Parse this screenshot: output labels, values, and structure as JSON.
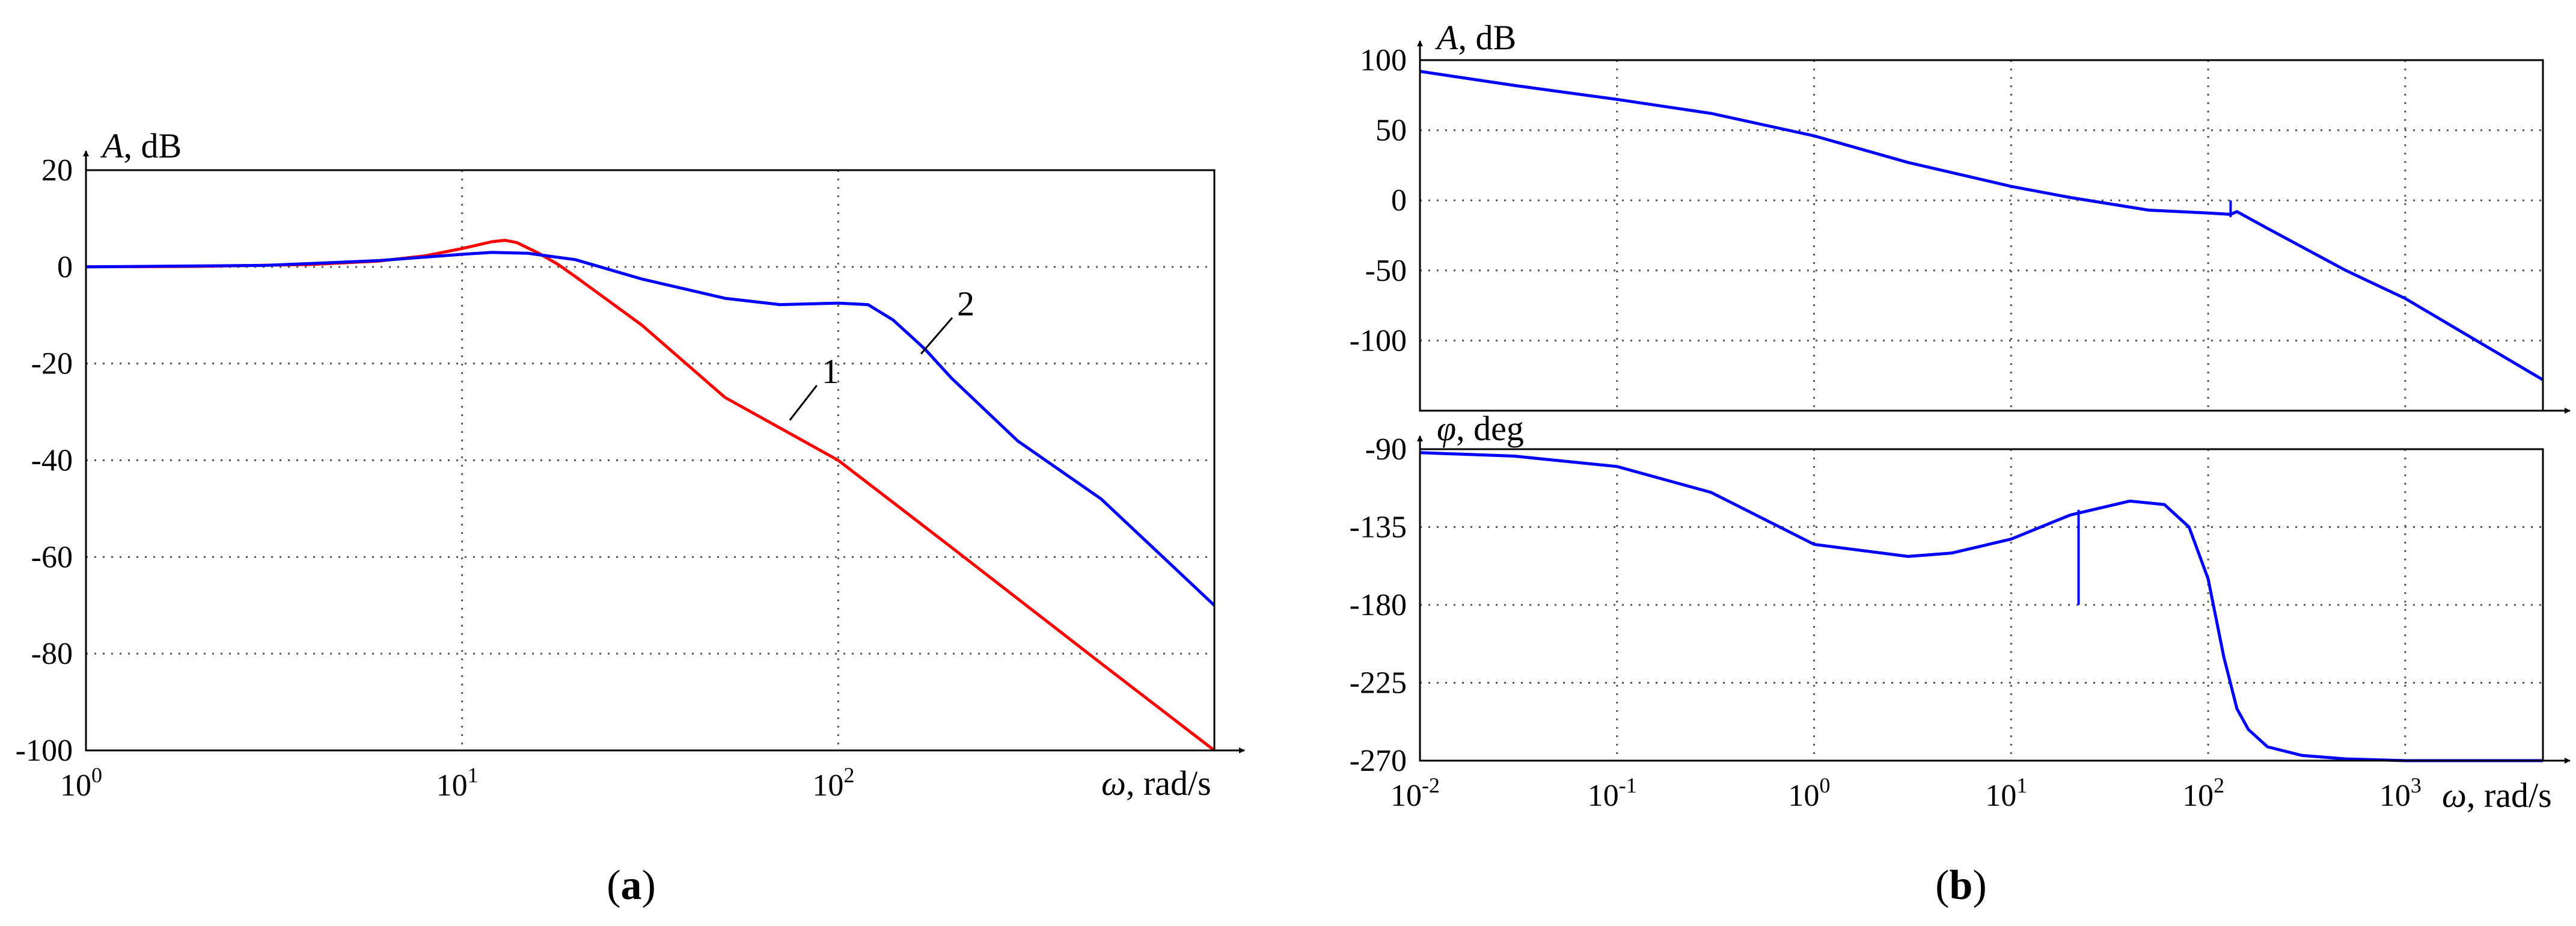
{
  "panels": {
    "a": {
      "label_open": "(",
      "label_letter": "a",
      "label_close": ")"
    },
    "b": {
      "label_open": "(",
      "label_letter": "b",
      "label_close": ")"
    }
  },
  "colors": {
    "curve_1": "#ff0000",
    "curve_2": "#0000ff",
    "frame": "#000000",
    "grid": "#555555"
  },
  "chart_data": [
    {
      "id": "a",
      "type": "line",
      "title": "",
      "ylabel_var": "A",
      "ylabel_unit": ", dB",
      "xlabel_var": "ω",
      "xlabel_unit": ", rad/s",
      "xscale": "log",
      "xlim": [
        1,
        1000
      ],
      "x_ticks": [
        {
          "base": "10",
          "exp": "0"
        },
        {
          "base": "10",
          "exp": "1"
        },
        {
          "base": "10",
          "exp": "2"
        }
      ],
      "ylim": [
        -100,
        20
      ],
      "y_ticks": [
        "20",
        "0",
        "-20",
        "-40",
        "-60",
        "-80",
        "-100"
      ],
      "grid": true,
      "series": [
        {
          "name": "1",
          "color": "#ff0000",
          "x": [
            1,
            2,
            4,
            6,
            8,
            10,
            12,
            13,
            14,
            16,
            18,
            20,
            30,
            50,
            100,
            200,
            500,
            1000
          ],
          "y": [
            0,
            0.1,
            0.5,
            1.2,
            2.3,
            3.8,
            5.2,
            5.5,
            5.0,
            2.8,
            0.5,
            -2,
            -12,
            -27,
            -40,
            -58,
            -82,
            -100
          ]
        },
        {
          "name": "2",
          "color": "#0000ff",
          "x": [
            1,
            3,
            6,
            10,
            12,
            15,
            20,
            30,
            50,
            70,
            100,
            120,
            140,
            170,
            200,
            300,
            500,
            1000
          ],
          "y": [
            0,
            0.3,
            1.3,
            2.6,
            3.0,
            2.8,
            1.5,
            -2.5,
            -6.5,
            -7.8,
            -7.5,
            -7.8,
            -11,
            -17,
            -23,
            -36,
            -48,
            -70
          ]
        }
      ],
      "annotations": [
        {
          "text": "1",
          "x": 80,
          "y": -27
        },
        {
          "text": "2",
          "x": 180,
          "y": -13
        }
      ]
    },
    {
      "id": "b-magnitude",
      "type": "line",
      "title": "",
      "ylabel_var": "A",
      "ylabel_unit": ", dB",
      "xscale": "log",
      "xlim": [
        0.01,
        5000
      ],
      "ylim": [
        -150,
        100
      ],
      "y_ticks": [
        "100",
        "50",
        "0",
        "-50",
        "-100"
      ],
      "grid": true,
      "series": [
        {
          "name": "",
          "color": "#0000ff",
          "x": [
            0.01,
            0.03,
            0.1,
            0.3,
            1,
            3,
            10,
            20,
            50,
            100,
            130,
            140,
            200,
            500,
            1000,
            5000
          ],
          "y": [
            92,
            82,
            72,
            62,
            46,
            27,
            10,
            2,
            -7,
            -9,
            -10,
            -8,
            -20,
            -50,
            -70,
            -128
          ]
        }
      ],
      "spike": {
        "x": 130,
        "y_top": 0,
        "y_bottom": -12
      }
    },
    {
      "id": "b-phase",
      "type": "line",
      "title": "",
      "ylabel_var": "φ",
      "ylabel_unit": ", deg",
      "xlabel_var": "ω",
      "xlabel_unit": ", rad/s",
      "xscale": "log",
      "xlim": [
        0.01,
        5000
      ],
      "x_ticks": [
        {
          "base": "10",
          "exp": "-2"
        },
        {
          "base": "10",
          "exp": "-1"
        },
        {
          "base": "10",
          "exp": "0"
        },
        {
          "base": "10",
          "exp": "1"
        },
        {
          "base": "10",
          "exp": "2"
        },
        {
          "base": "10",
          "exp": "3"
        }
      ],
      "ylim": [
        -270,
        -90
      ],
      "y_ticks": [
        "-90",
        "-135",
        "-180",
        "-225",
        "-270"
      ],
      "grid": true,
      "series": [
        {
          "name": "",
          "color": "#0000ff",
          "x": [
            0.01,
            0.03,
            0.1,
            0.3,
            1,
            3,
            5,
            10,
            20,
            40,
            60,
            80,
            100,
            120,
            140,
            160,
            200,
            300,
            500,
            1000,
            5000
          ],
          "y": [
            -92,
            -94,
            -100,
            -115,
            -145,
            -152,
            -150,
            -142,
            -128,
            -120,
            -122,
            -135,
            -165,
            -210,
            -240,
            -252,
            -262,
            -267,
            -269,
            -270,
            -270
          ]
        }
      ],
      "spike": {
        "x": 22,
        "y_top": -125,
        "y_bottom": -180
      }
    }
  ]
}
